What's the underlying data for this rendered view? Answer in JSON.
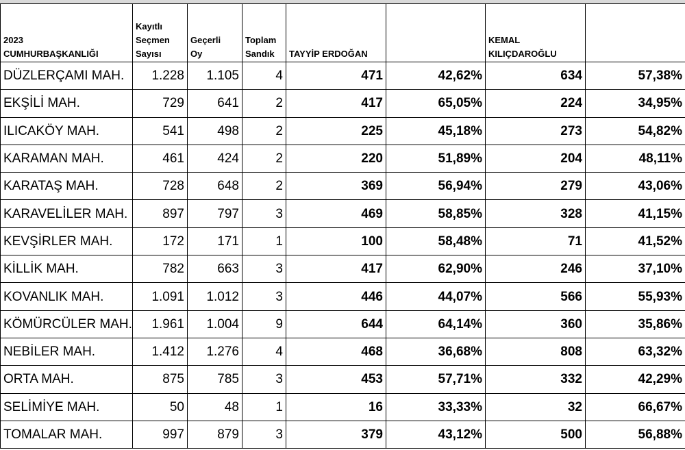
{
  "header": {
    "title_line1": "2023",
    "title_line2": "CUMHURBAŞKANLIĞI",
    "registered_line1": "Kayıtlı",
    "registered_line2": "Seçmen",
    "registered_line3": "Sayısı",
    "valid_line1": "Geçerli",
    "valid_line2": "Oy",
    "boxes_line1": "Toplam",
    "boxes_line2": "Sandık",
    "candidate1": "TAYYİP ERDOĞAN",
    "candidate1_pct": "",
    "candidate2_line1": "KEMAL",
    "candidate2_line2": "KILIÇDAROĞLU",
    "candidate2_pct": ""
  },
  "rows": [
    {
      "name": "DÜZLERÇAMI MAH.",
      "registered": "1.228",
      "valid": "1.105",
      "boxes": "4",
      "erdogan": "471",
      "erdogan_pct": "42,62%",
      "kilicdaroglu": "634",
      "kilicdaroglu_pct": "57,38%"
    },
    {
      "name": "EKŞİLİ MAH.",
      "registered": "729",
      "valid": "641",
      "boxes": "2",
      "erdogan": "417",
      "erdogan_pct": "65,05%",
      "kilicdaroglu": "224",
      "kilicdaroglu_pct": "34,95%"
    },
    {
      "name": "ILICAKÖY MAH.",
      "registered": "541",
      "valid": "498",
      "boxes": "2",
      "erdogan": "225",
      "erdogan_pct": "45,18%",
      "kilicdaroglu": "273",
      "kilicdaroglu_pct": "54,82%"
    },
    {
      "name": " KARAMAN MAH.",
      "registered": "461",
      "valid": "424",
      "boxes": "2",
      "erdogan": "220",
      "erdogan_pct": "51,89%",
      "kilicdaroglu": "204",
      "kilicdaroglu_pct": "48,11%"
    },
    {
      "name": "KARATAŞ MAH.",
      "registered": "728",
      "valid": "648",
      "boxes": "2",
      "erdogan": "369",
      "erdogan_pct": "56,94%",
      "kilicdaroglu": "279",
      "kilicdaroglu_pct": "43,06%"
    },
    {
      "name": "KARAVELİLER MAH.",
      "registered": "897",
      "valid": "797",
      "boxes": "3",
      "erdogan": "469",
      "erdogan_pct": "58,85%",
      "kilicdaroglu": "328",
      "kilicdaroglu_pct": "41,15%"
    },
    {
      "name": " KEVŞİRLER MAH.",
      "registered": "172",
      "valid": "171",
      "boxes": "1",
      "erdogan": "100",
      "erdogan_pct": "58,48%",
      "kilicdaroglu": "71",
      "kilicdaroglu_pct": "41,52%"
    },
    {
      "name": "KİLLİK MAH.",
      "registered": "782",
      "valid": "663",
      "boxes": "3",
      "erdogan": "417",
      "erdogan_pct": "62,90%",
      "kilicdaroglu": "246",
      "kilicdaroglu_pct": "37,10%"
    },
    {
      "name": "KOVANLIK MAH.",
      "registered": "1.091",
      "valid": "1.012",
      "boxes": "3",
      "erdogan": "446",
      "erdogan_pct": "44,07%",
      "kilicdaroglu": "566",
      "kilicdaroglu_pct": "55,93%"
    },
    {
      "name": "KÖMÜRCÜLER MAH.",
      "registered": "1.961",
      "valid": "1.004",
      "boxes": "9",
      "erdogan": "644",
      "erdogan_pct": "64,14%",
      "kilicdaroglu": "360",
      "kilicdaroglu_pct": "35,86%"
    },
    {
      "name": " NEBİLER MAH.",
      "registered": "1.412",
      "valid": "1.276",
      "boxes": "4",
      "erdogan": "468",
      "erdogan_pct": "36,68%",
      "kilicdaroglu": "808",
      "kilicdaroglu_pct": "63,32%"
    },
    {
      "name": "ORTA MAH.",
      "registered": "875",
      "valid": "785",
      "boxes": "3",
      "erdogan": "453",
      "erdogan_pct": "57,71%",
      "kilicdaroglu": "332",
      "kilicdaroglu_pct": "42,29%"
    },
    {
      "name": "SELİMİYE MAH.",
      "registered": "50",
      "valid": "48",
      "boxes": "1",
      "erdogan": "16",
      "erdogan_pct": "33,33%",
      "kilicdaroglu": "32",
      "kilicdaroglu_pct": "66,67%"
    },
    {
      "name": "TOMALAR MAH.",
      "registered": "997",
      "valid": "879",
      "boxes": "3",
      "erdogan": "379",
      "erdogan_pct": "43,12%",
      "kilicdaroglu": "500",
      "kilicdaroglu_pct": "56,88%"
    }
  ]
}
